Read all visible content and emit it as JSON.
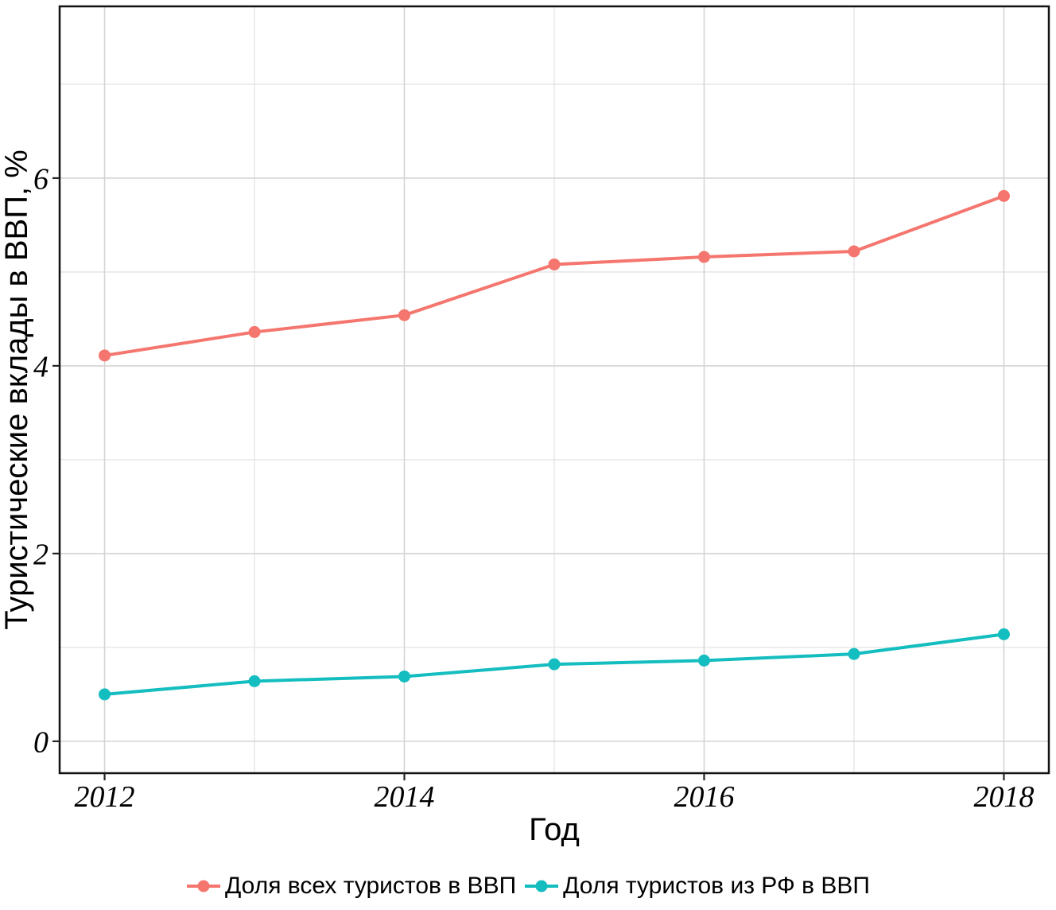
{
  "chart_data": {
    "type": "line",
    "title": "",
    "xlabel": "Год",
    "ylabel": "Туристические вклады в ВВП, %",
    "x": [
      2012,
      2013,
      2014,
      2015,
      2016,
      2017,
      2018
    ],
    "series": [
      {
        "name": "Доля всех туристов в ВВП",
        "color": "#F4766E",
        "values": [
          4.11,
          4.36,
          4.54,
          5.08,
          5.16,
          5.22,
          5.81
        ]
      },
      {
        "name": "Доля туристов из РФ в ВВП",
        "color": "#14BDBF",
        "values": [
          0.5,
          0.64,
          0.69,
          0.82,
          0.86,
          0.93,
          1.14
        ]
      }
    ],
    "xlim": [
      2011.7,
      2018.3
    ],
    "ylim": [
      -0.34,
      7.83
    ],
    "x_ticks_major": [
      2012,
      2014,
      2016,
      2018
    ],
    "x_ticks_minor": [
      2013,
      2015,
      2017
    ],
    "x_tick_labels": [
      "2012",
      "2014",
      "2016",
      "2018"
    ],
    "y_ticks_major": [
      0,
      2,
      4,
      6
    ],
    "y_ticks_minor": [
      1,
      3,
      5,
      7
    ],
    "y_tick_labels": [
      "0",
      "2",
      "4",
      "6"
    ],
    "grid": true,
    "legend_position": "bottom",
    "colors": {
      "grid_major": "#D4D4D4",
      "grid_minor": "#E3E3E3",
      "panel_border": "#111111",
      "tick": "#222222",
      "text": "#000000",
      "background": "#FFFFFF"
    }
  }
}
